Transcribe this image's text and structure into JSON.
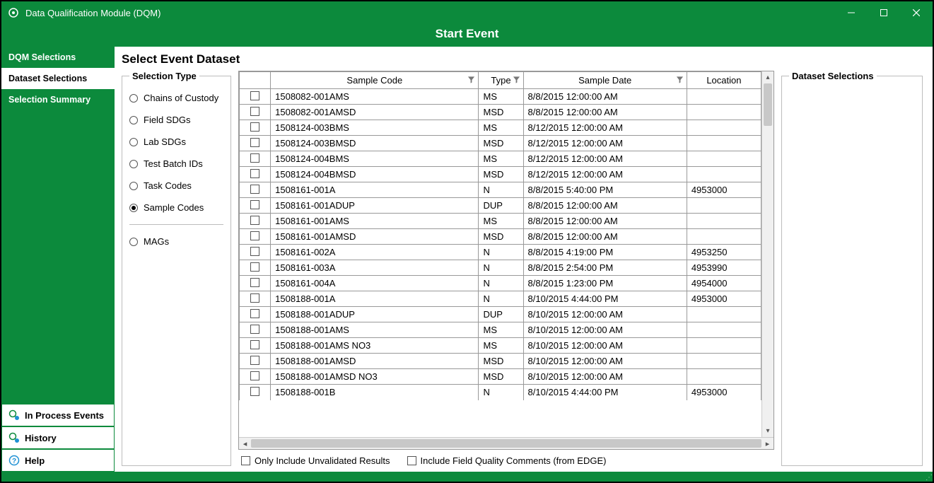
{
  "colors": {
    "brand": "#0c8a3c",
    "border": "#999999",
    "panelBorder": "#bcbcbc"
  },
  "window": {
    "title": "Data Qualification Module (DQM)"
  },
  "header": {
    "title": "Start Event"
  },
  "sidebar": {
    "top": [
      {
        "label": "DQM Selections",
        "active": false
      },
      {
        "label": "Dataset Selections",
        "active": true
      },
      {
        "label": "Selection Summary",
        "active": false
      }
    ],
    "bottom": [
      {
        "label": "In Process Events",
        "icon": "process"
      },
      {
        "label": "History",
        "icon": "history"
      },
      {
        "label": "Help",
        "icon": "help"
      }
    ]
  },
  "page": {
    "title": "Select Event Dataset"
  },
  "selectionType": {
    "legend": "Selection Type",
    "options": [
      {
        "label": "Chains of Custody",
        "selected": false
      },
      {
        "label": "Field SDGs",
        "selected": false
      },
      {
        "label": "Lab SDGs",
        "selected": false
      },
      {
        "label": "Test Batch IDs",
        "selected": false
      },
      {
        "label": "Task Codes",
        "selected": false
      },
      {
        "label": "Sample Codes",
        "selected": true
      }
    ],
    "extra": [
      {
        "label": "MAGs",
        "selected": false
      }
    ]
  },
  "grid": {
    "columns": [
      {
        "key": "check",
        "label": "",
        "filter": false
      },
      {
        "key": "code",
        "label": "Sample Code",
        "filter": true
      },
      {
        "key": "type",
        "label": "Type",
        "filter": true
      },
      {
        "key": "date",
        "label": "Sample Date",
        "filter": true
      },
      {
        "key": "loc",
        "label": "Location",
        "filter": false
      }
    ],
    "rows": [
      {
        "code": "1508082-001AMS",
        "type": "MS",
        "date": "8/8/2015 12:00:00 AM",
        "loc": ""
      },
      {
        "code": "1508082-001AMSD",
        "type": "MSD",
        "date": "8/8/2015 12:00:00 AM",
        "loc": ""
      },
      {
        "code": "1508124-003BMS",
        "type": "MS",
        "date": "8/12/2015 12:00:00 AM",
        "loc": ""
      },
      {
        "code": "1508124-003BMSD",
        "type": "MSD",
        "date": "8/12/2015 12:00:00 AM",
        "loc": ""
      },
      {
        "code": "1508124-004BMS",
        "type": "MS",
        "date": "8/12/2015 12:00:00 AM",
        "loc": ""
      },
      {
        "code": "1508124-004BMSD",
        "type": "MSD",
        "date": "8/12/2015 12:00:00 AM",
        "loc": ""
      },
      {
        "code": "1508161-001A",
        "type": "N",
        "date": "8/8/2015 5:40:00 PM",
        "loc": "4953000"
      },
      {
        "code": "1508161-001ADUP",
        "type": "DUP",
        "date": "8/8/2015 12:00:00 AM",
        "loc": ""
      },
      {
        "code": "1508161-001AMS",
        "type": "MS",
        "date": "8/8/2015 12:00:00 AM",
        "loc": ""
      },
      {
        "code": "1508161-001AMSD",
        "type": "MSD",
        "date": "8/8/2015 12:00:00 AM",
        "loc": ""
      },
      {
        "code": "1508161-002A",
        "type": "N",
        "date": "8/8/2015 4:19:00 PM",
        "loc": "4953250"
      },
      {
        "code": "1508161-003A",
        "type": "N",
        "date": "8/8/2015 2:54:00 PM",
        "loc": "4953990"
      },
      {
        "code": "1508161-004A",
        "type": "N",
        "date": "8/8/2015 1:23:00 PM",
        "loc": "4954000"
      },
      {
        "code": "1508188-001A",
        "type": "N",
        "date": "8/10/2015 4:44:00 PM",
        "loc": "4953000"
      },
      {
        "code": "1508188-001ADUP",
        "type": "DUP",
        "date": "8/10/2015 12:00:00 AM",
        "loc": ""
      },
      {
        "code": "1508188-001AMS",
        "type": "MS",
        "date": "8/10/2015 12:00:00 AM",
        "loc": ""
      },
      {
        "code": "1508188-001AMS NO3",
        "type": "MS",
        "date": "8/10/2015 12:00:00 AM",
        "loc": ""
      },
      {
        "code": "1508188-001AMSD",
        "type": "MSD",
        "date": "8/10/2015 12:00:00 AM",
        "loc": ""
      },
      {
        "code": "1508188-001AMSD NO3",
        "type": "MSD",
        "date": "8/10/2015 12:00:00 AM",
        "loc": ""
      },
      {
        "code": "1508188-001B",
        "type": "N",
        "date": "8/10/2015 4:44:00 PM",
        "loc": "4953000"
      }
    ]
  },
  "bottomChecks": {
    "unvalidated": "Only Include Unvalidated Results",
    "fieldQuality": "Include Field Quality Comments (from EDGE)"
  },
  "datasetSelections": {
    "legend": "Dataset Selections"
  }
}
